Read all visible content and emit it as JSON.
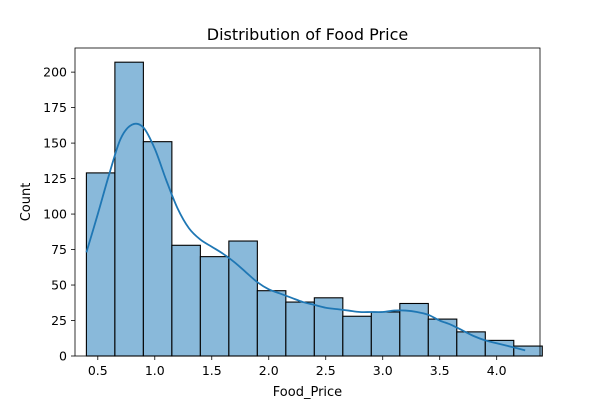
{
  "chart_data": {
    "type": "bar",
    "subtype": "histogram_with_kde",
    "title": "Distribution of Food Price",
    "xlabel": "Food_Price",
    "ylabel": "Count",
    "xlim": [
      0.3,
      4.38
    ],
    "ylim": [
      0,
      217
    ],
    "xticks": [
      0.5,
      1.0,
      1.5,
      2.0,
      2.5,
      3.0,
      3.5,
      4.0
    ],
    "xtick_labels": [
      "0.5",
      "1.0",
      "1.5",
      "2.0",
      "2.5",
      "3.0",
      "3.5",
      "4.0"
    ],
    "yticks": [
      0,
      25,
      50,
      75,
      100,
      125,
      150,
      175,
      200
    ],
    "ytick_labels": [
      "0",
      "25",
      "50",
      "75",
      "100",
      "125",
      "150",
      "175",
      "200"
    ],
    "bins": [
      {
        "x0": 0.4,
        "x1": 0.65,
        "count": 129
      },
      {
        "x0": 0.65,
        "x1": 0.9,
        "count": 207
      },
      {
        "x0": 0.9,
        "x1": 1.15,
        "count": 151
      },
      {
        "x0": 1.15,
        "x1": 1.4,
        "count": 78
      },
      {
        "x0": 1.4,
        "x1": 1.65,
        "count": 70
      },
      {
        "x0": 1.65,
        "x1": 1.9,
        "count": 81
      },
      {
        "x0": 1.9,
        "x1": 2.15,
        "count": 46
      },
      {
        "x0": 2.15,
        "x1": 2.4,
        "count": 38
      },
      {
        "x0": 2.4,
        "x1": 2.65,
        "count": 41
      },
      {
        "x0": 2.65,
        "x1": 2.9,
        "count": 28
      },
      {
        "x0": 2.9,
        "x1": 3.15,
        "count": 31
      },
      {
        "x0": 3.15,
        "x1": 3.4,
        "count": 37
      },
      {
        "x0": 3.4,
        "x1": 3.65,
        "count": 26
      },
      {
        "x0": 3.65,
        "x1": 3.9,
        "count": 17
      },
      {
        "x0": 3.9,
        "x1": 4.15,
        "count": 11
      },
      {
        "x0": 4.15,
        "x1": 4.4,
        "count": 7
      }
    ],
    "kde": {
      "x": [
        0.4,
        0.5,
        0.6,
        0.7,
        0.8,
        0.9,
        1.0,
        1.1,
        1.2,
        1.3,
        1.4,
        1.5,
        1.6,
        1.7,
        1.8,
        1.9,
        2.0,
        2.1,
        2.2,
        2.3,
        2.4,
        2.5,
        2.6,
        2.7,
        2.8,
        2.9,
        3.0,
        3.1,
        3.2,
        3.3,
        3.4,
        3.5,
        3.6,
        3.7,
        3.8,
        3.9,
        4.0,
        4.1,
        4.2,
        4.25
      ],
      "y": [
        73,
        100,
        128,
        153,
        163,
        161,
        146,
        124,
        104,
        90,
        82,
        77,
        72,
        66,
        59,
        52,
        47,
        44,
        41,
        38,
        36,
        34,
        33,
        32,
        31,
        31,
        31,
        32,
        32,
        31,
        29,
        25,
        22,
        18,
        14,
        11,
        9,
        7,
        5,
        4
      ]
    },
    "colors": {
      "bar_fill": "#89b9da",
      "bar_edge": "#000000",
      "kde_line": "#1f77b4"
    },
    "grid": false,
    "legend": "none"
  }
}
